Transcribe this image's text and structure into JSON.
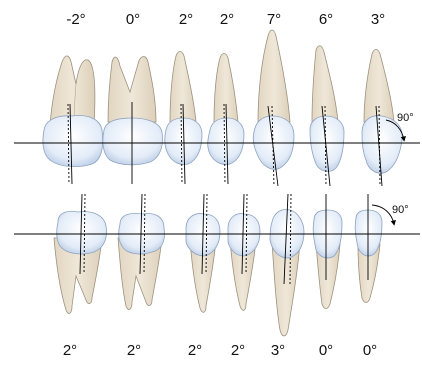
{
  "upper_row": {
    "angles": [
      "-2°",
      "0°",
      "2°",
      "2°",
      "7°",
      "6°",
      "3°"
    ],
    "reference_angle": "90°"
  },
  "lower_row": {
    "angles": [
      "2°",
      "2°",
      "2°",
      "2°",
      "3°",
      "0°",
      "0°"
    ],
    "reference_angle": "90°"
  },
  "colors": {
    "root": "#ebe1cf",
    "root_stroke": "#9c9280",
    "crown": "#dde8f6",
    "crown_stroke": "#8fa3bf",
    "line": "#000000"
  }
}
